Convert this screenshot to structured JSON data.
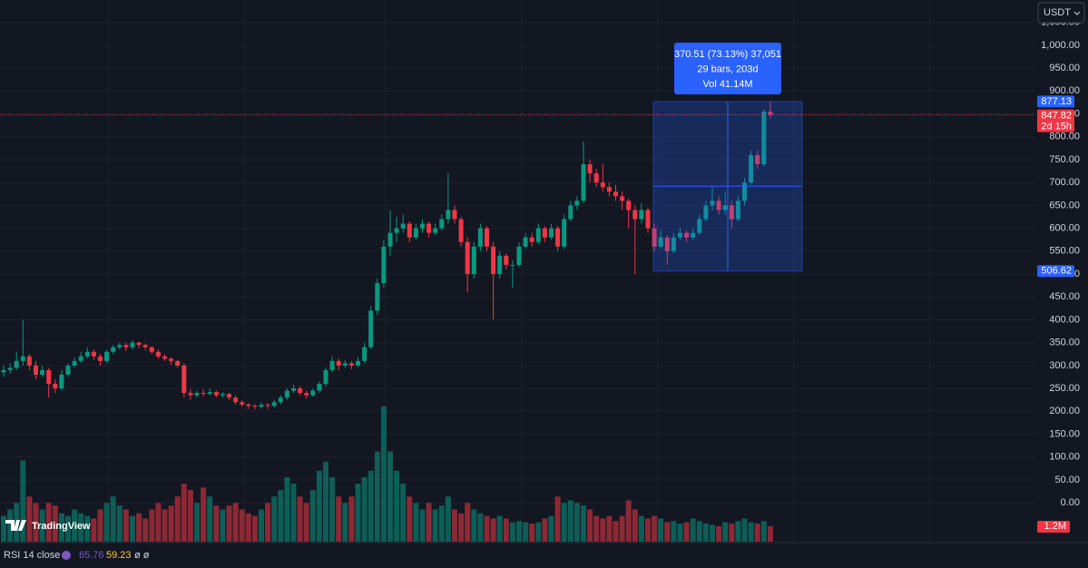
{
  "chart_data": {
    "type": "candlestick",
    "currency": "USDT",
    "logo": "TradingView",
    "ylim": [
      -85,
      1099
    ],
    "yticks": [
      {
        "value": 0,
        "label": "0.00"
      },
      {
        "value": 50,
        "label": "50.00"
      },
      {
        "value": 100,
        "label": "100.00"
      },
      {
        "value": 150,
        "label": "150.00"
      },
      {
        "value": 200,
        "label": "200.00"
      },
      {
        "value": 250,
        "label": "250.00"
      },
      {
        "value": 300,
        "label": "300.00"
      },
      {
        "value": 350,
        "label": "350.00"
      },
      {
        "value": 400,
        "label": "400.00"
      },
      {
        "value": 450,
        "label": "450.00"
      },
      {
        "value": 500,
        "label": "500.00"
      },
      {
        "value": 550,
        "label": "550.00"
      },
      {
        "value": 600,
        "label": "600.00"
      },
      {
        "value": 650,
        "label": "650.00"
      },
      {
        "value": 700,
        "label": "700.00"
      },
      {
        "value": 750,
        "label": "750.00"
      },
      {
        "value": 800,
        "label": "800.00"
      },
      {
        "value": 850,
        "label": "850.00"
      },
      {
        "value": 900,
        "label": "900.00"
      },
      {
        "value": 950,
        "label": "950.00"
      },
      {
        "value": 1000,
        "label": "1,000.00"
      },
      {
        "value": 1050,
        "label": "1,050.00"
      }
    ],
    "up_color": "#089981",
    "down_color": "#f23645",
    "ohlc": [
      [
        285,
        300,
        275,
        290
      ],
      [
        290,
        305,
        282,
        295
      ],
      [
        295,
        330,
        290,
        310
      ],
      [
        310,
        400,
        300,
        320
      ],
      [
        320,
        325,
        290,
        300
      ],
      [
        300,
        310,
        270,
        280
      ],
      [
        280,
        300,
        275,
        290
      ],
      [
        290,
        295,
        230,
        260
      ],
      [
        260,
        270,
        240,
        250
      ],
      [
        250,
        290,
        245,
        280
      ],
      [
        280,
        305,
        275,
        300
      ],
      [
        300,
        318,
        295,
        310
      ],
      [
        310,
        330,
        305,
        320
      ],
      [
        320,
        340,
        315,
        330
      ],
      [
        330,
        335,
        312,
        320
      ],
      [
        320,
        325,
        300,
        310
      ],
      [
        310,
        335,
        305,
        330
      ],
      [
        330,
        345,
        325,
        340
      ],
      [
        340,
        350,
        335,
        345
      ],
      [
        345,
        350,
        332,
        340
      ],
      [
        340,
        355,
        335,
        350
      ],
      [
        350,
        352,
        338,
        345
      ],
      [
        345,
        348,
        334,
        340
      ],
      [
        340,
        342,
        325,
        330
      ],
      [
        330,
        335,
        315,
        320
      ],
      [
        320,
        325,
        310,
        315
      ],
      [
        315,
        318,
        302,
        310
      ],
      [
        310,
        312,
        295,
        300
      ],
      [
        300,
        305,
        230,
        240
      ],
      [
        240,
        248,
        225,
        235
      ],
      [
        235,
        245,
        230,
        240
      ],
      [
        240,
        248,
        232,
        238
      ],
      [
        238,
        250,
        235,
        242
      ],
      [
        242,
        245,
        230,
        235
      ],
      [
        235,
        242,
        230,
        238
      ],
      [
        238,
        240,
        225,
        230
      ],
      [
        230,
        235,
        215,
        220
      ],
      [
        220,
        225,
        210,
        215
      ],
      [
        215,
        218,
        205,
        212
      ],
      [
        212,
        216,
        204,
        210
      ],
      [
        210,
        220,
        206,
        214
      ],
      [
        214,
        218,
        205,
        212
      ],
      [
        212,
        225,
        208,
        220
      ],
      [
        220,
        235,
        215,
        230
      ],
      [
        230,
        250,
        225,
        245
      ],
      [
        245,
        258,
        240,
        250
      ],
      [
        250,
        255,
        235,
        240
      ],
      [
        240,
        245,
        228,
        235
      ],
      [
        235,
        250,
        232,
        245
      ],
      [
        245,
        265,
        240,
        260
      ],
      [
        260,
        295,
        255,
        290
      ],
      [
        290,
        320,
        285,
        310
      ],
      [
        310,
        315,
        290,
        300
      ],
      [
        300,
        312,
        295,
        305
      ],
      [
        305,
        310,
        292,
        300
      ],
      [
        300,
        318,
        296,
        310
      ],
      [
        310,
        350,
        305,
        340
      ],
      [
        340,
        430,
        335,
        420
      ],
      [
        420,
        490,
        410,
        480
      ],
      [
        480,
        575,
        470,
        560
      ],
      [
        560,
        640,
        540,
        590
      ],
      [
        590,
        625,
        570,
        600
      ],
      [
        600,
        630,
        590,
        610
      ],
      [
        610,
        615,
        570,
        580
      ],
      [
        580,
        610,
        575,
        600
      ],
      [
        600,
        620,
        590,
        610
      ],
      [
        610,
        615,
        580,
        590
      ],
      [
        590,
        610,
        585,
        600
      ],
      [
        600,
        630,
        595,
        620
      ],
      [
        620,
        720,
        610,
        640
      ],
      [
        640,
        650,
        610,
        620
      ],
      [
        620,
        625,
        560,
        570
      ],
      [
        570,
        580,
        460,
        500
      ],
      [
        500,
        570,
        490,
        560
      ],
      [
        560,
        610,
        550,
        600
      ],
      [
        600,
        605,
        550,
        560
      ],
      [
        560,
        570,
        400,
        500
      ],
      [
        500,
        550,
        490,
        540
      ],
      [
        540,
        545,
        510,
        520
      ],
      [
        520,
        530,
        470,
        520
      ],
      [
        520,
        570,
        515,
        560
      ],
      [
        560,
        590,
        555,
        580
      ],
      [
        580,
        590,
        560,
        570
      ],
      [
        570,
        610,
        565,
        600
      ],
      [
        600,
        605,
        570,
        580
      ],
      [
        580,
        610,
        575,
        600
      ],
      [
        600,
        605,
        550,
        560
      ],
      [
        560,
        630,
        555,
        620
      ],
      [
        620,
        660,
        615,
        650
      ],
      [
        650,
        670,
        640,
        660
      ],
      [
        660,
        790,
        655,
        740
      ],
      [
        740,
        750,
        700,
        720
      ],
      [
        720,
        730,
        690,
        700
      ],
      [
        700,
        740,
        680,
        690
      ],
      [
        690,
        700,
        670,
        680
      ],
      [
        680,
        695,
        660,
        670
      ],
      [
        670,
        680,
        640,
        660
      ],
      [
        660,
        665,
        600,
        640
      ],
      [
        640,
        650,
        500,
        620
      ],
      [
        620,
        655,
        610,
        640
      ],
      [
        640,
        645,
        590,
        600
      ],
      [
        600,
        610,
        550,
        560
      ],
      [
        560,
        595,
        555,
        580
      ],
      [
        580,
        585,
        520,
        550
      ],
      [
        550,
        590,
        545,
        580
      ],
      [
        580,
        600,
        575,
        590
      ],
      [
        590,
        595,
        570,
        580
      ],
      [
        580,
        600,
        575,
        590
      ],
      [
        590,
        630,
        585,
        620
      ],
      [
        620,
        660,
        615,
        650
      ],
      [
        650,
        690,
        640,
        660
      ],
      [
        660,
        670,
        630,
        640
      ],
      [
        640,
        680,
        630,
        650
      ],
      [
        650,
        660,
        600,
        620
      ],
      [
        620,
        670,
        615,
        660
      ],
      [
        660,
        710,
        650,
        700
      ],
      [
        700,
        770,
        695,
        760
      ],
      [
        760,
        770,
        730,
        740
      ],
      [
        740,
        860,
        735,
        855
      ],
      [
        855,
        877.13,
        840,
        847.82
      ]
    ],
    "volume_ylim": [
      0,
      42
    ],
    "volume": [
      2.0,
      2.5,
      3.0,
      6.3,
      3.5,
      3.0,
      2.5,
      3.0,
      2.8,
      2.2,
      2.0,
      2.5,
      2.2,
      2.0,
      1.8,
      2.5,
      3.0,
      3.5,
      2.8,
      2.5,
      2.0,
      2.2,
      1.8,
      2.5,
      3.0,
      2.5,
      2.8,
      3.5,
      4.5,
      4.0,
      3.0,
      4.2,
      3.5,
      2.8,
      2.5,
      2.8,
      3.0,
      2.5,
      2.2,
      2.0,
      2.5,
      3.0,
      3.5,
      4.0,
      5.0,
      4.5,
      3.5,
      3.0,
      4.0,
      5.5,
      6.2,
      5.0,
      3.5,
      3.0,
      3.5,
      4.5,
      5.0,
      5.5,
      7.0,
      10.5,
      7.0,
      5.5,
      4.5,
      3.5,
      3.0,
      2.5,
      3.0,
      2.5,
      2.8,
      3.5,
      2.5,
      2.2,
      3.0,
      2.5,
      2.2,
      2.0,
      1.8,
      2.0,
      1.8,
      1.5,
      1.6,
      1.5,
      1.4,
      1.5,
      1.8,
      2.0,
      3.5,
      3.0,
      3.2,
      3.0,
      2.8,
      2.5,
      2.0,
      1.8,
      2.0,
      1.6,
      2.0,
      3.2,
      2.5,
      2.0,
      1.8,
      2.0,
      1.8,
      1.5,
      1.6,
      1.4,
      1.5,
      1.8,
      1.6,
      1.4,
      1.3,
      1.2,
      1.5,
      1.4,
      1.6,
      1.8,
      1.5,
      1.4,
      1.6,
      1.2
    ],
    "volume_tag": {
      "value": 1.2,
      "label": "1.2M"
    },
    "current_price": 847.82,
    "countdown": "2d 15h",
    "measure": {
      "from": 506.62,
      "to": 877.13,
      "lines": [
        "370.51 (73.13%) 37,051",
        "29 bars, 203d",
        "Vol 41.14M"
      ]
    },
    "rsi": {
      "label": "RSI 14 close",
      "values": [
        65.76,
        59.23
      ],
      "extra": "ø ø"
    }
  }
}
